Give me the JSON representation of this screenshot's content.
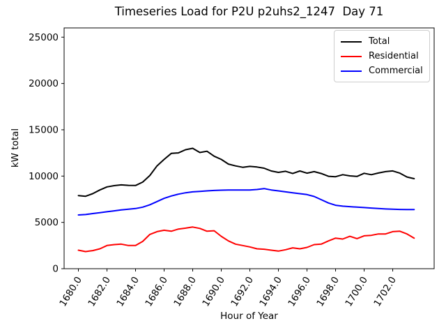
{
  "chart_data": {
    "type": "line",
    "title": "Timeseries Load for P2U p2uhs2_1247  Day 71",
    "xlabel": "Hour of Year",
    "ylabel": "kW total",
    "grid": false,
    "legend_position": "upper right",
    "xlim": [
      1679.0,
      1704.9
    ],
    "ylim": [
      0,
      26000
    ],
    "yticks": [
      0,
      5000,
      10000,
      15000,
      20000,
      25000
    ],
    "ytick_labels": [
      "0",
      "5000",
      "10000",
      "15000",
      "20000",
      "25000"
    ],
    "xticks": [
      1680,
      1682,
      1684,
      1686,
      1688,
      1690,
      1692,
      1694,
      1696,
      1698,
      1700,
      1702
    ],
    "xtick_labels": [
      "1680.0",
      "1682.0",
      "1684.0",
      "1686.0",
      "1688.0",
      "1690.0",
      "1692.0",
      "1694.0",
      "1696.0",
      "1698.0",
      "1700.0",
      "1702.0"
    ],
    "x": [
      1680.0,
      1680.5,
      1681.0,
      1681.5,
      1682.0,
      1682.5,
      1683.0,
      1683.5,
      1684.0,
      1684.5,
      1685.0,
      1685.5,
      1686.0,
      1686.5,
      1687.0,
      1687.5,
      1688.0,
      1688.5,
      1689.0,
      1689.5,
      1690.0,
      1690.5,
      1691.0,
      1691.5,
      1692.0,
      1692.5,
      1693.0,
      1693.5,
      1694.0,
      1694.5,
      1695.0,
      1695.5,
      1696.0,
      1696.5,
      1697.0,
      1697.5,
      1698.0,
      1698.5,
      1699.0,
      1699.5,
      1700.0,
      1700.5,
      1701.0,
      1701.5,
      1702.0,
      1702.5,
      1703.0,
      1703.5
    ],
    "series": [
      {
        "name": "Total",
        "color": "#000000",
        "values": [
          7900,
          7820,
          8100,
          8500,
          8830,
          8970,
          9050,
          9000,
          8980,
          9350,
          10060,
          11100,
          11800,
          12450,
          12500,
          12850,
          13000,
          12550,
          12680,
          12150,
          11800,
          11300,
          11100,
          10950,
          11050,
          10980,
          10850,
          10550,
          10400,
          10520,
          10280,
          10550,
          10320,
          10480,
          10280,
          9980,
          9930,
          10150,
          10020,
          9960,
          10300,
          10150,
          10330,
          10480,
          10560,
          10320,
          9900,
          9720
        ]
      },
      {
        "name": "Residential",
        "color": "#ff0000",
        "values": [
          2000,
          1850,
          1950,
          2150,
          2500,
          2600,
          2650,
          2500,
          2500,
          2950,
          3700,
          4000,
          4150,
          4050,
          4280,
          4380,
          4500,
          4350,
          4050,
          4100,
          3500,
          3000,
          2650,
          2500,
          2350,
          2150,
          2100,
          2000,
          1900,
          2050,
          2250,
          2150,
          2300,
          2600,
          2650,
          3000,
          3300,
          3200,
          3500,
          3250,
          3550,
          3600,
          3750,
          3750,
          4000,
          4050,
          3750,
          3300
        ]
      },
      {
        "name": "Commercial",
        "color": "#0000ff",
        "values": [
          5800,
          5850,
          5950,
          6050,
          6150,
          6250,
          6350,
          6420,
          6500,
          6650,
          6900,
          7250,
          7600,
          7850,
          8050,
          8200,
          8300,
          8350,
          8400,
          8450,
          8480,
          8500,
          8500,
          8500,
          8500,
          8550,
          8650,
          8500,
          8400,
          8300,
          8200,
          8100,
          8000,
          7800,
          7450,
          7100,
          6850,
          6750,
          6700,
          6650,
          6600,
          6550,
          6500,
          6450,
          6420,
          6400,
          6380,
          6380
        ]
      }
    ]
  }
}
